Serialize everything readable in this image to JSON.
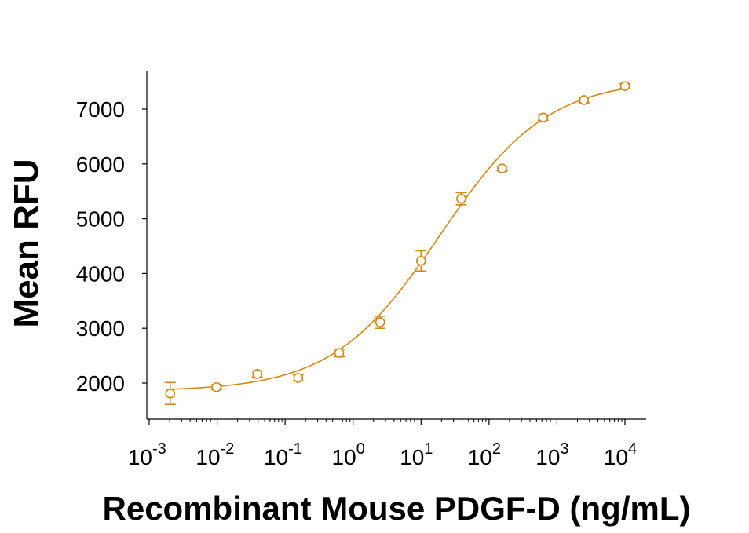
{
  "chart_data": {
    "type": "scatter",
    "title": "",
    "xlabel": "Recombinant Mouse PDGF-D (ng/mL)",
    "ylabel": "Mean RFU",
    "x_scale": "log",
    "xlim": [
      0.001,
      10000
    ],
    "ylim": [
      1350,
      7700
    ],
    "grid": false,
    "colors": {
      "series": "#d4870f",
      "axis": "#000000"
    },
    "x_ticks": [
      {
        "base": "10",
        "exp": "-3",
        "value": 0.001
      },
      {
        "base": "10",
        "exp": "-2",
        "value": 0.01
      },
      {
        "base": "10",
        "exp": "-1",
        "value": 0.1
      },
      {
        "base": "10",
        "exp": "0",
        "value": 1
      },
      {
        "base": "10",
        "exp": "1",
        "value": 10
      },
      {
        "base": "10",
        "exp": "2",
        "value": 100
      },
      {
        "base": "10",
        "exp": "3",
        "value": 1000
      },
      {
        "base": "10",
        "exp": "4",
        "value": 10000
      }
    ],
    "y_ticks": [
      {
        "label": "2000",
        "value": 2000
      },
      {
        "label": "3000",
        "value": 3000
      },
      {
        "label": "4000",
        "value": 4000
      },
      {
        "label": "5000",
        "value": 5000
      },
      {
        "label": "6000",
        "value": 6000
      },
      {
        "label": "7000",
        "value": 7000
      }
    ],
    "series": [
      {
        "marker": "open-circle",
        "points": [
          {
            "x": 0.00204,
            "y": 1810,
            "err": 200
          },
          {
            "x": 0.0098,
            "y": 1925,
            "err": 45
          },
          {
            "x": 0.039,
            "y": 2165,
            "err": 55
          },
          {
            "x": 0.156,
            "y": 2095,
            "err": 55
          },
          {
            "x": 0.625,
            "y": 2550,
            "err": 70
          },
          {
            "x": 2.5,
            "y": 3110,
            "err": 110
          },
          {
            "x": 10,
            "y": 4230,
            "err": 185
          },
          {
            "x": 39,
            "y": 5365,
            "err": 110
          },
          {
            "x": 156,
            "y": 5915,
            "err": 45
          },
          {
            "x": 625,
            "y": 6845,
            "err": 50
          },
          {
            "x": 2500,
            "y": 7165,
            "err": 50
          },
          {
            "x": 10000,
            "y": 7420,
            "err": 45
          }
        ],
        "fit": {
          "model": "4PL",
          "bottom": 1850,
          "top": 7550,
          "ec50": 19,
          "hill": 0.55
        }
      }
    ]
  }
}
